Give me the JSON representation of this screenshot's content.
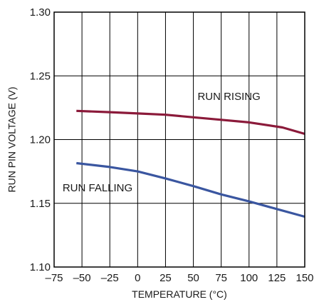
{
  "chart_data": {
    "type": "line",
    "title": "",
    "xlabel": "TEMPERATURE (°C)",
    "ylabel": "RUN PIN VOLTAGE (V)",
    "xlim": [
      -75,
      150
    ],
    "ylim": [
      1.1,
      1.3
    ],
    "x_ticks": [
      -75,
      -50,
      -25,
      0,
      25,
      50,
      75,
      100,
      125,
      150
    ],
    "x_tick_labels": [
      "–75",
      "–50",
      "–25",
      "0",
      "25",
      "50",
      "75",
      "100",
      "125",
      "150"
    ],
    "y_ticks": [
      1.1,
      1.15,
      1.2,
      1.25,
      1.3
    ],
    "y_tick_labels": [
      "1.10",
      "1.15",
      "1.20",
      "1.25",
      "1.30"
    ],
    "grid": true,
    "series": [
      {
        "name": "RUN RISING",
        "color": "#8b1a3a",
        "x": [
          -55,
          -25,
          0,
          25,
          50,
          75,
          100,
          130,
          150
        ],
        "y": [
          1.2225,
          1.2215,
          1.2205,
          1.2195,
          1.2175,
          1.2155,
          1.2135,
          1.2095,
          1.2045
        ]
      },
      {
        "name": "RUN FALLING",
        "color": "#3a56a0",
        "x": [
          -55,
          -25,
          0,
          25,
          50,
          75,
          100,
          125,
          150
        ],
        "y": [
          1.1815,
          1.1785,
          1.175,
          1.1695,
          1.1635,
          1.157,
          1.1515,
          1.1455,
          1.1395
        ]
      }
    ]
  }
}
